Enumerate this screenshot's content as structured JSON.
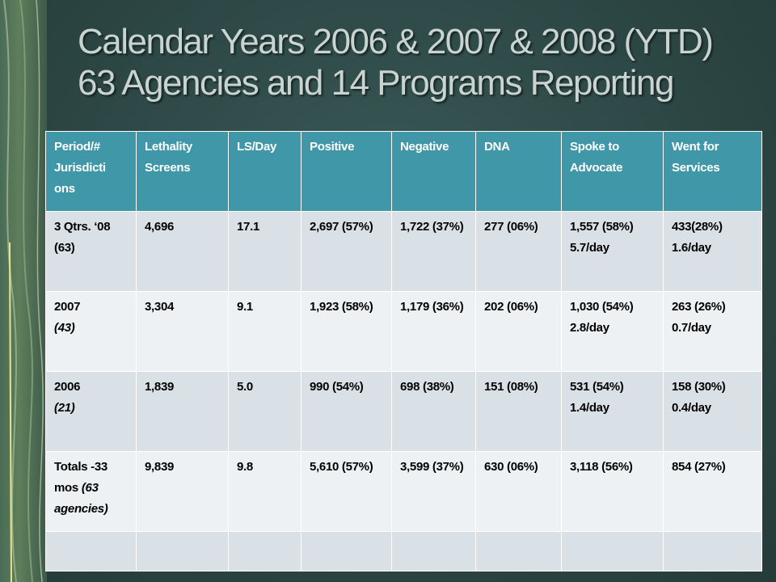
{
  "slide": {
    "title_line1": "Calendar Years 2006 & 2007 & 2008 (YTD)",
    "title_line2": "63 Agencies and 14 Programs Reporting"
  },
  "table": {
    "headers": [
      "Period/# Jurisdicti ons",
      "Lethality Screens",
      "LS/Day",
      "Positive",
      "Negative",
      "DNA",
      "Spoke to Advocate",
      "Went for Services"
    ],
    "rows": [
      {
        "period": "3 Qtrs. ‘08",
        "period_sub": "(63)",
        "screens": "4,696",
        "ls_day": "17.1",
        "positive": "2,697 (57%)",
        "negative": "1,722 (37%)",
        "dna": "277 (06%)",
        "spoke": "1,557 (58%) 5.7/day",
        "went": "433(28%) 1.6/day"
      },
      {
        "period": "2007",
        "period_sub": "(43)",
        "screens": "3,304",
        "ls_day": "9.1",
        "positive": "1,923 (58%)",
        "negative": "1,179 (36%)",
        "dna": "202 (06%)",
        "spoke": "1,030 (54%) 2.8/day",
        "went": "263 (26%) 0.7/day"
      },
      {
        "period": "2006",
        "period_sub": "(21)",
        "screens": "1,839",
        "ls_day": "5.0",
        "positive": "990 (54%)",
        "negative": "698 (38%)",
        "dna": "151 (08%)",
        "spoke": "531 (54%) 1.4/day",
        "went": "158 (30%) 0.4/day"
      },
      {
        "period": "Totals -33 mos",
        "period_sub": "(63 agencies)",
        "screens": "9,839",
        "ls_day": "9.8",
        "positive": "5,610 (57%)",
        "negative": "3,599 (37%)",
        "dna": "630 (06%)",
        "spoke": "3,118 (56%)",
        "went": "854 (27%)"
      }
    ]
  }
}
